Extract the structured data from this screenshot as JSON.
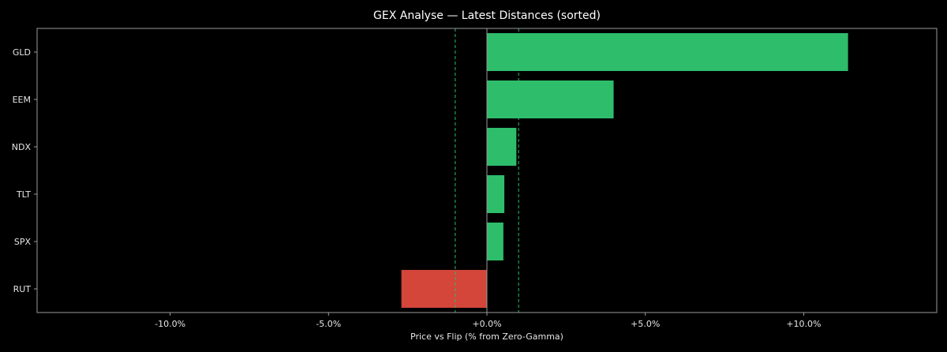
{
  "chart_data": {
    "type": "bar",
    "orientation": "horizontal",
    "title": "GEX Analyse — Latest Distances (sorted)",
    "xlabel": "Price vs Flip (% from Zero-Gamma)",
    "ylabel": "",
    "categories": [
      "GLD",
      "EEM",
      "NDX",
      "TLT",
      "SPX",
      "RUT"
    ],
    "values": [
      11.4,
      4.0,
      0.93,
      0.55,
      0.52,
      -2.7
    ],
    "xlim": [
      -14.2,
      14.2
    ],
    "xticks": [
      -10,
      -5,
      0,
      5,
      10
    ],
    "xtick_labels": [
      "-10.0%",
      "-5.0%",
      "+0.0%",
      "+5.0%",
      "+10.0%"
    ],
    "reference_lines": [
      -1.0,
      1.0
    ],
    "zero_line": 0,
    "grid": false,
    "colors": {
      "positive": "#2ebd6b",
      "negative": "#d4453a",
      "reference": "#2ebd6b",
      "zero_line": "#9a9a9a",
      "axis": "#9a9a9a",
      "text": "#e6e6e6",
      "background": "#000000"
    }
  }
}
